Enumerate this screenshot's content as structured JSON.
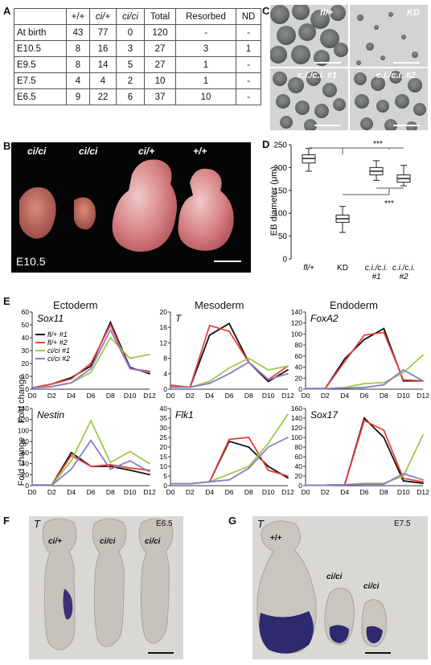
{
  "panel_letters": {
    "a": "A",
    "b": "B",
    "c": "C",
    "d": "D",
    "e": "E",
    "f": "F",
    "g": "G"
  },
  "table": {
    "headers": [
      "",
      "+/+",
      "ci/+",
      "ci/ci",
      "Total",
      "Resorbed",
      "ND"
    ],
    "rows": [
      [
        "At birth",
        "43",
        "77",
        "0",
        "120",
        "-",
        "-"
      ],
      [
        "E10.5",
        "8",
        "16",
        "3",
        "27",
        "3",
        "1"
      ],
      [
        "E9.5",
        "8",
        "14",
        "5",
        "27",
        "1",
        "-"
      ],
      [
        "E7.5",
        "4",
        "4",
        "2",
        "10",
        "1",
        "-"
      ],
      [
        "E6.5",
        "9",
        "22",
        "6",
        "37",
        "10",
        "-"
      ]
    ]
  },
  "panel_b": {
    "labels": [
      "ci/ci",
      "ci/ci",
      "ci/+",
      "+/+"
    ],
    "stage": "E10.5"
  },
  "panel_c": {
    "labels": [
      "fl/+",
      "KD",
      "c.i./c.i. #1",
      "c.i./c.i. #2"
    ]
  },
  "panel_f": {
    "gene": "T",
    "stage": "E6.5",
    "labels": [
      "ci/+",
      "ci/ci",
      "ci/ci"
    ]
  },
  "panel_g": {
    "gene": "T",
    "stage": "E7.5",
    "labels": [
      "+/+",
      "ci/ci",
      "ci/ci"
    ]
  },
  "colors": {
    "fl1": "#111111",
    "fl2": "#e8413d",
    "ci1": "#9bcb4a",
    "ci2": "#8a7cc6"
  },
  "chart_data": [
    {
      "id": "D",
      "type": "box",
      "ylabel": "EB diameter (μm)",
      "ylim": [
        0,
        250
      ],
      "yticks": [
        "0",
        "50",
        "100",
        "150",
        "200",
        "250"
      ],
      "categories": [
        "fl/+",
        "KD",
        "c.i./c.i. #1",
        "c.i./c.i. #2"
      ],
      "category_lines": [
        [
          "fl/+"
        ],
        [
          "KD"
        ],
        [
          "c.i./c.i.",
          "#1"
        ],
        [
          "c.i./c.i.",
          "#2"
        ]
      ],
      "boxes": [
        {
          "min": 192,
          "q1": 210,
          "median": 220,
          "q3": 228,
          "max": 242
        },
        {
          "min": 58,
          "q1": 80,
          "median": 88,
          "q3": 96,
          "max": 115
        },
        {
          "min": 172,
          "q1": 184,
          "median": 192,
          "q3": 200,
          "max": 215
        },
        {
          "min": 160,
          "q1": 168,
          "median": 176,
          "q3": 184,
          "max": 205
        }
      ],
      "annotations": [
        "***",
        "***"
      ]
    },
    {
      "id": "E-Sox11",
      "type": "line",
      "title": "Ectoderm",
      "gene": "Sox11",
      "ylabel": "Fold change",
      "x": [
        "D0",
        "D2",
        "D4",
        "D6",
        "D8",
        "D10",
        "D12"
      ],
      "ylim": [
        0,
        60
      ],
      "yticks": [
        "0",
        "10",
        "20",
        "30",
        "40",
        "50",
        "60"
      ],
      "legend": [
        "fl/+ #1",
        "fl/+ #2",
        "ci/ci #1",
        "ci/ci #2"
      ],
      "series": [
        {
          "name": "fl/+ #1",
          "values": [
            1,
            4,
            9,
            18,
            52,
            17,
            12
          ]
        },
        {
          "name": "fl/+ #2",
          "values": [
            1,
            4,
            8,
            20,
            50,
            16,
            14
          ]
        },
        {
          "name": "ci/ci #1",
          "values": [
            1,
            2,
            5,
            13,
            40,
            24,
            27
          ]
        },
        {
          "name": "ci/ci #2",
          "values": [
            1,
            2,
            5,
            16,
            46,
            16,
            13
          ]
        }
      ]
    },
    {
      "id": "E-T",
      "type": "line",
      "title": "Mesoderm",
      "gene": "T",
      "x": [
        "D0",
        "D2",
        "D4",
        "D6",
        "D8",
        "D10",
        "D12"
      ],
      "ylim": [
        0,
        20
      ],
      "yticks": [
        "0",
        "4",
        "8",
        "12",
        "16",
        "20"
      ],
      "series": [
        {
          "name": "fl/+ #1",
          "values": [
            1,
            0.5,
            14,
            17,
            7,
            2,
            5
          ]
        },
        {
          "name": "fl/+ #2",
          "values": [
            1,
            0.5,
            16.5,
            15,
            7,
            2.5,
            6
          ]
        },
        {
          "name": "ci/ci #1",
          "values": [
            0.5,
            0.5,
            2,
            5.5,
            8,
            5,
            6
          ]
        },
        {
          "name": "ci/ci #2",
          "values": [
            0.5,
            0.5,
            1.5,
            4,
            7,
            2.5,
            4
          ]
        }
      ]
    },
    {
      "id": "E-FoxA2",
      "type": "line",
      "title": "Endoderm",
      "gene": "FoxA2",
      "x": [
        "D0",
        "D2",
        "D4",
        "D6",
        "D8",
        "D10",
        "D12"
      ],
      "ylim": [
        0,
        140
      ],
      "yticks": [
        "0",
        "20",
        "40",
        "60",
        "80",
        "100",
        "120",
        "140"
      ],
      "series": [
        {
          "name": "fl/+ #1",
          "values": [
            1,
            1,
            55,
            90,
            110,
            15,
            15
          ]
        },
        {
          "name": "fl/+ #2",
          "values": [
            1,
            1,
            50,
            98,
            103,
            17,
            15
          ]
        },
        {
          "name": "ci/ci #1",
          "values": [
            1,
            1,
            3,
            10,
            12,
            30,
            62
          ]
        },
        {
          "name": "ci/ci #2",
          "values": [
            1,
            1,
            2,
            3,
            8,
            35,
            15
          ]
        }
      ]
    },
    {
      "id": "E-Nestin",
      "type": "line",
      "gene": "Nestin",
      "ylabel": "Fold change",
      "x": [
        "D0",
        "D2",
        "D4",
        "D6",
        "D8",
        "D10",
        "D12"
      ],
      "ylim": [
        0,
        140
      ],
      "yticks": [
        "0",
        "20",
        "40",
        "60",
        "80",
        "100",
        "120",
        "140"
      ],
      "series": [
        {
          "name": "fl/+ #1",
          "values": [
            1,
            1,
            60,
            35,
            35,
            28,
            20
          ]
        },
        {
          "name": "fl/+ #2",
          "values": [
            1,
            1,
            55,
            35,
            38,
            32,
            28
          ]
        },
        {
          "name": "ci/ci #1",
          "values": [
            1,
            1,
            45,
            118,
            42,
            62,
            40
          ]
        },
        {
          "name": "ci/ci #2",
          "values": [
            1,
            1,
            30,
            82,
            30,
            45,
            25
          ]
        }
      ]
    },
    {
      "id": "E-Flk1",
      "type": "line",
      "gene": "Flk1",
      "x": [
        "D0",
        "D2",
        "D4",
        "D6",
        "D8",
        "D10",
        "D12"
      ],
      "ylim": [
        0,
        40
      ],
      "yticks": [
        "0",
        "5",
        "10",
        "15",
        "20",
        "25",
        "30",
        "35",
        "40"
      ],
      "series": [
        {
          "name": "fl/+ #1",
          "values": [
            1,
            1,
            2,
            23,
            20,
            10,
            4
          ]
        },
        {
          "name": "fl/+ #2",
          "values": [
            1,
            1,
            2,
            24,
            25,
            8,
            5
          ]
        },
        {
          "name": "ci/ci #1",
          "values": [
            1,
            1,
            2,
            6,
            10,
            22,
            37
          ]
        },
        {
          "name": "ci/ci #2",
          "values": [
            1,
            1,
            2,
            3,
            9,
            20,
            25
          ]
        }
      ]
    },
    {
      "id": "E-Sox17",
      "type": "line",
      "gene": "Sox17",
      "x": [
        "D0",
        "D2",
        "D4",
        "D6",
        "D8",
        "D10",
        "D12"
      ],
      "ylim": [
        0,
        160
      ],
      "yticks": [
        "0",
        "20",
        "40",
        "60",
        "80",
        "100",
        "120",
        "140",
        "160"
      ],
      "series": [
        {
          "name": "fl/+ #1",
          "values": [
            1,
            1,
            2,
            140,
            100,
            10,
            5
          ]
        },
        {
          "name": "fl/+ #2",
          "values": [
            1,
            1,
            2,
            135,
            115,
            15,
            8
          ]
        },
        {
          "name": "ci/ci #1",
          "values": [
            1,
            1,
            2,
            5,
            5,
            20,
            105
          ]
        },
        {
          "name": "ci/ci #2",
          "values": [
            1,
            1,
            2,
            3,
            3,
            25,
            12
          ]
        }
      ]
    }
  ]
}
